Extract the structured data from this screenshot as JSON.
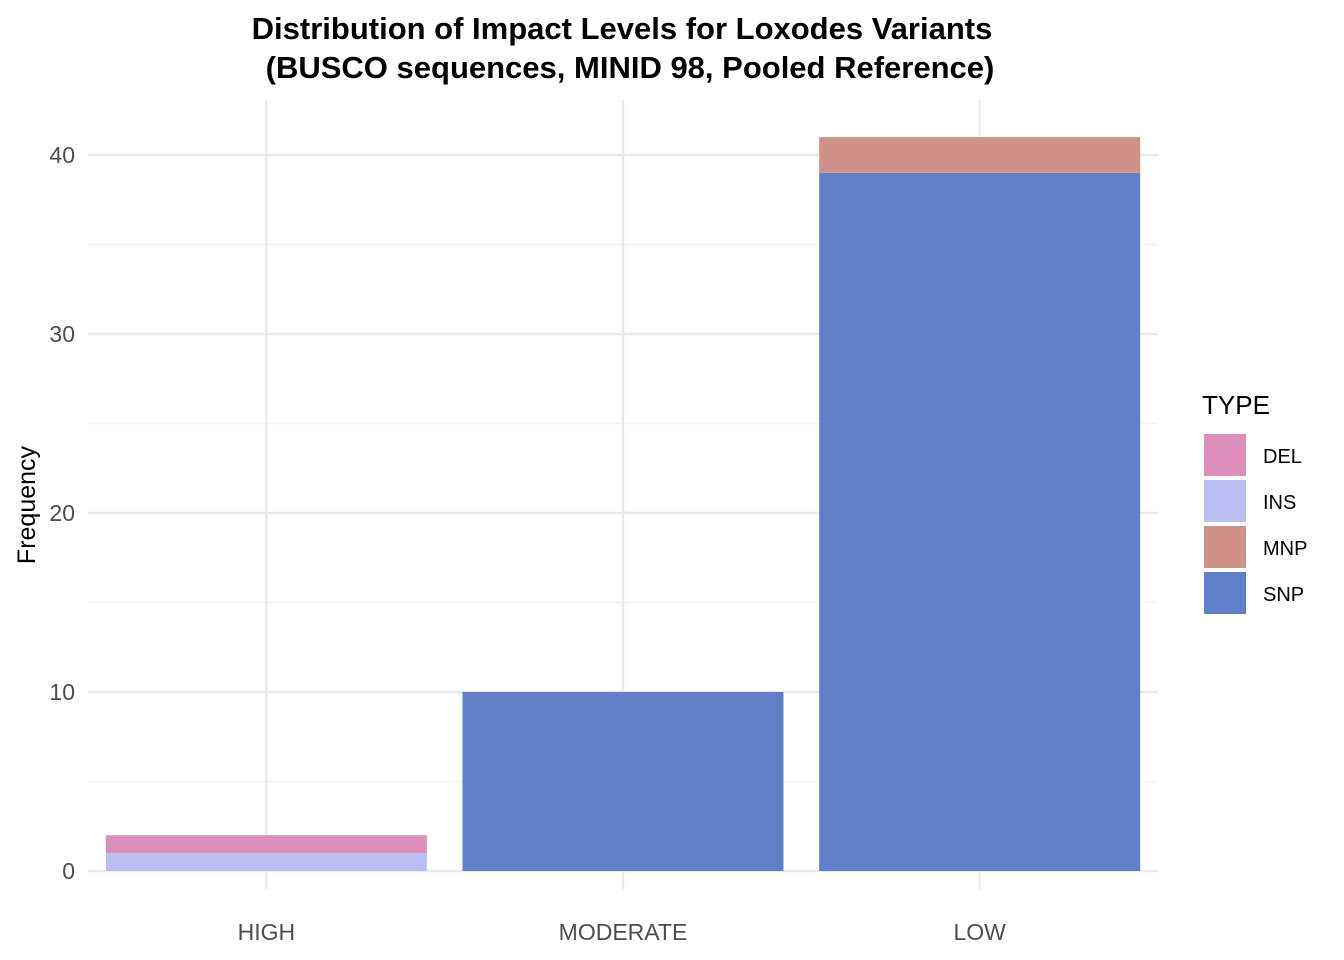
{
  "chart_data": {
    "type": "bar",
    "stacked": true,
    "title": "Distribution of Impact Levels for Loxodes Variants",
    "subtitle": "(BUSCO sequences, MINID 98, Pooled Reference)",
    "xlabel": "",
    "ylabel": "Frequency",
    "categories": [
      "HIGH",
      "MODERATE",
      "LOW"
    ],
    "series": [
      {
        "name": "DEL",
        "color": "#dd8eba",
        "values": [
          1,
          0,
          0
        ]
      },
      {
        "name": "INS",
        "color": "#b9bdf2",
        "values": [
          1,
          0,
          0
        ]
      },
      {
        "name": "MNP",
        "color": "#cf9288",
        "values": [
          0,
          0,
          2
        ]
      },
      {
        "name": "SNP",
        "color": "#5f7fc9",
        "values": [
          0,
          10,
          39
        ]
      }
    ],
    "stack_order_bottom_to_top": [
      "SNP",
      "MNP",
      "INS",
      "DEL"
    ],
    "ylim": [
      0,
      43
    ],
    "y_ticks": [
      0,
      10,
      20,
      30,
      40
    ],
    "y_tick_labels": [
      "0",
      "10",
      "20",
      "30",
      "40"
    ],
    "grid": true,
    "legend": {
      "title": "TYPE",
      "position": "right"
    }
  }
}
